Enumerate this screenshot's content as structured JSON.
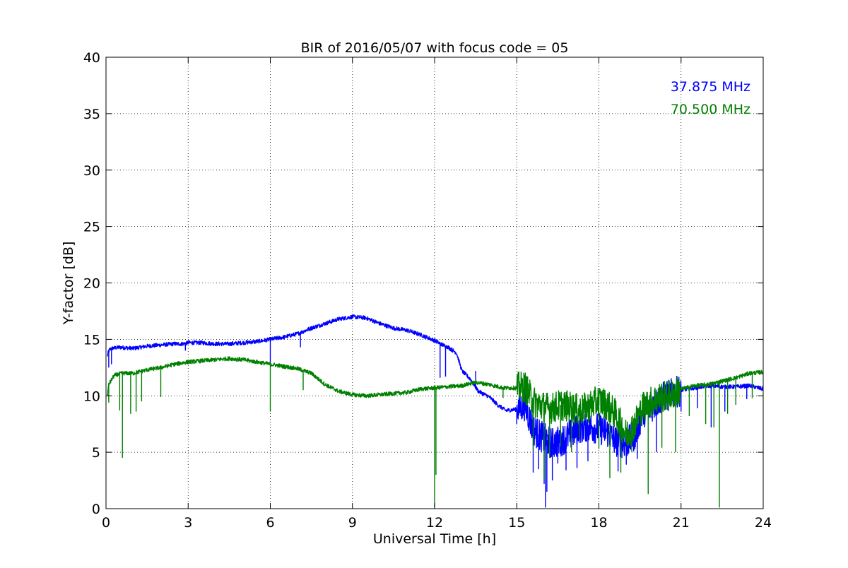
{
  "chart_data": {
    "type": "line",
    "title": "BIR of 2016/05/07 with focus code = 05",
    "xlabel": "Universal Time [h]",
    "ylabel": "Y-factor [dB]",
    "xlim": [
      0,
      24
    ],
    "ylim": [
      0,
      40
    ],
    "xticks": [
      0,
      3,
      6,
      9,
      12,
      15,
      18,
      21,
      24
    ],
    "yticks": [
      0,
      5,
      10,
      15,
      20,
      25,
      30,
      35,
      40
    ],
    "grid": true,
    "legend_position": "top-right",
    "series": [
      {
        "name": "37.875 MHz",
        "color": "#0000ff",
        "x": [
          0.05,
          0.1,
          0.2,
          0.5,
          1.0,
          1.5,
          2.0,
          2.5,
          2.8,
          3.0,
          3.5,
          4.0,
          4.5,
          5.0,
          5.5,
          6.0,
          6.5,
          7.0,
          7.5,
          8.0,
          8.5,
          9.0,
          9.5,
          10.0,
          10.5,
          11.0,
          11.5,
          12.0,
          12.3,
          12.5,
          12.8,
          13.0,
          13.3,
          13.6,
          14.0,
          14.3,
          14.6,
          15.0,
          15.3,
          15.6,
          16.0,
          16.3,
          16.6,
          17.0,
          17.3,
          17.6,
          18.0,
          18.3,
          18.6,
          19.0,
          19.3,
          19.6,
          20.0,
          20.3,
          20.6,
          21.0,
          21.5,
          22.0,
          22.5,
          23.0,
          23.5,
          24.0
        ],
        "values": [
          13.5,
          14.0,
          14.2,
          14.3,
          14.2,
          14.4,
          14.5,
          14.6,
          14.6,
          14.7,
          14.7,
          14.6,
          14.6,
          14.7,
          14.8,
          15.0,
          15.2,
          15.5,
          16.0,
          16.4,
          16.8,
          17.0,
          16.9,
          16.4,
          16.0,
          15.8,
          15.4,
          14.9,
          14.5,
          14.3,
          13.8,
          12.2,
          11.5,
          10.4,
          9.9,
          9.2,
          8.7,
          8.8,
          9.2,
          7.0,
          6.2,
          5.8,
          6.0,
          6.6,
          7.2,
          7.3,
          7.1,
          6.8,
          6.0,
          5.8,
          6.5,
          8.5,
          9.2,
          9.8,
          10.1,
          10.5,
          10.7,
          10.9,
          10.8,
          10.8,
          10.9,
          10.6
        ],
        "dips": [
          [
            0.1,
            12.5
          ],
          [
            0.2,
            12.8
          ],
          [
            2.9,
            14.0
          ],
          [
            6.0,
            13.0
          ],
          [
            7.1,
            14.3
          ],
          [
            12.2,
            11.6
          ],
          [
            12.4,
            11.7
          ],
          [
            13.5,
            12.2
          ],
          [
            15.0,
            7.5
          ],
          [
            15.6,
            3.2
          ],
          [
            15.8,
            3.5
          ],
          [
            16.0,
            2.2
          ],
          [
            16.05,
            0.1
          ],
          [
            16.1,
            1.5
          ],
          [
            16.3,
            2.5
          ],
          [
            16.5,
            4.0
          ],
          [
            16.8,
            3.4
          ],
          [
            17.2,
            3.6
          ],
          [
            17.6,
            4.2
          ],
          [
            18.7,
            3.3
          ],
          [
            19.0,
            3.9
          ],
          [
            19.4,
            4.4
          ],
          [
            20.1,
            5.0
          ],
          [
            21.0,
            8.6
          ],
          [
            21.6,
            8.9
          ],
          [
            22.1,
            7.2
          ],
          [
            22.6,
            8.6
          ],
          [
            23.4,
            9.7
          ]
        ]
      },
      {
        "name": "70.500 MHz",
        "color": "#008000",
        "x": [
          0.05,
          0.1,
          0.3,
          0.6,
          1.0,
          1.5,
          2.0,
          2.5,
          3.0,
          3.5,
          4.0,
          4.5,
          5.0,
          5.5,
          6.0,
          6.5,
          7.0,
          7.5,
          8.0,
          8.5,
          9.0,
          9.5,
          10.0,
          10.5,
          11.0,
          11.5,
          12.0,
          12.5,
          13.0,
          13.5,
          14.0,
          14.5,
          15.0,
          15.3,
          15.6,
          16.0,
          16.3,
          16.6,
          17.0,
          17.3,
          17.6,
          18.0,
          18.3,
          18.6,
          19.0,
          19.3,
          19.6,
          20.0,
          20.3,
          20.6,
          21.0,
          21.5,
          22.0,
          22.5,
          23.0,
          23.5,
          24.0
        ],
        "values": [
          10.0,
          11.0,
          11.8,
          12.0,
          12.0,
          12.3,
          12.5,
          12.8,
          13.0,
          13.1,
          13.2,
          13.3,
          13.2,
          13.0,
          12.8,
          12.6,
          12.4,
          12.0,
          11.0,
          10.4,
          10.1,
          10.0,
          10.1,
          10.2,
          10.3,
          10.6,
          10.7,
          10.8,
          10.9,
          11.2,
          11.0,
          10.7,
          10.7,
          10.8,
          9.5,
          9.0,
          8.9,
          9.2,
          9.0,
          8.7,
          9.0,
          9.6,
          9.2,
          8.4,
          6.5,
          7.5,
          9.0,
          9.6,
          9.9,
          10.0,
          10.6,
          10.9,
          11.0,
          11.3,
          11.6,
          12.0,
          12.1
        ],
        "dips": [
          [
            0.1,
            9.4
          ],
          [
            0.5,
            8.7
          ],
          [
            0.6,
            4.5
          ],
          [
            0.9,
            8.4
          ],
          [
            1.1,
            8.6
          ],
          [
            1.3,
            9.5
          ],
          [
            2.0,
            9.9
          ],
          [
            6.0,
            8.6
          ],
          [
            7.2,
            10.5
          ],
          [
            12.0,
            0.1
          ],
          [
            12.05,
            3.0
          ],
          [
            14.5,
            9.8
          ],
          [
            15.6,
            5.2
          ],
          [
            16.0,
            2.6
          ],
          [
            16.2,
            4.5
          ],
          [
            16.6,
            5.5
          ],
          [
            17.0,
            5.0
          ],
          [
            17.3,
            6.2
          ],
          [
            18.0,
            5.3
          ],
          [
            18.4,
            2.7
          ],
          [
            18.8,
            3.2
          ],
          [
            19.2,
            5.0
          ],
          [
            19.8,
            1.3
          ],
          [
            20.3,
            5.4
          ],
          [
            20.8,
            5.0
          ],
          [
            21.3,
            8.2
          ],
          [
            21.9,
            7.5
          ],
          [
            22.2,
            7.2
          ],
          [
            22.4,
            0.1
          ],
          [
            22.7,
            8.4
          ],
          [
            23.0,
            9.2
          ],
          [
            23.6,
            9.8
          ]
        ]
      }
    ]
  }
}
